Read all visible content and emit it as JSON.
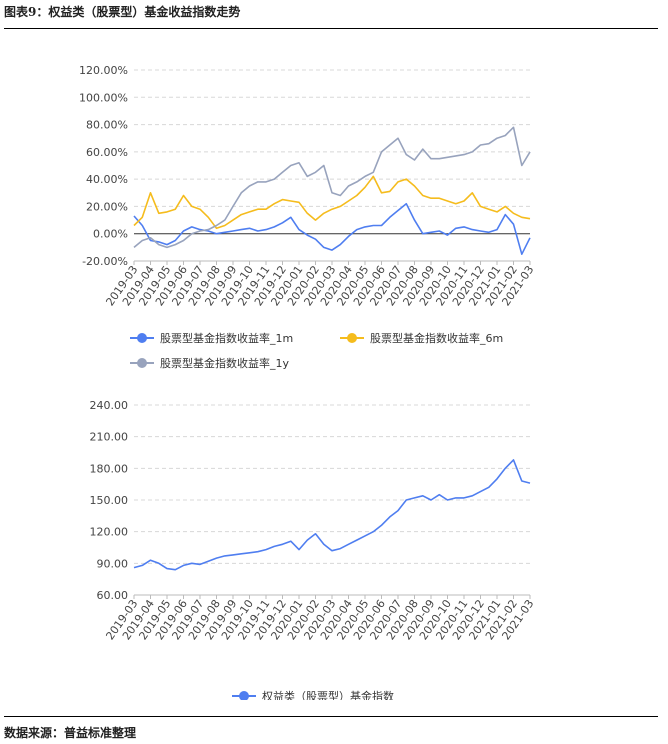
{
  "header": {
    "title": "图表9：权益类（股票型）基金收益指数走势"
  },
  "footer": {
    "source": "数据来源：普益标准整理"
  },
  "x_labels": [
    "2019-03",
    "2019-04",
    "2019-05",
    "2019-06",
    "2019-07",
    "2019-08",
    "2019-09",
    "2019-10",
    "2019-11",
    "2019-12",
    "2020-01",
    "2020-02",
    "2020-03",
    "2020-04",
    "2020-05",
    "2020-06",
    "2020-07",
    "2020-08",
    "2020-09",
    "2020-10",
    "2020-11",
    "2020-12",
    "2021-01",
    "2021-02",
    "2021-03"
  ],
  "chart_data": [
    {
      "type": "line",
      "y_unit": "%",
      "ylim": [
        -20,
        120
      ],
      "yticks": [
        -20,
        0,
        20,
        40,
        60,
        80,
        100,
        120
      ],
      "ytick_labels": [
        "-20.00%",
        "0.00%",
        "20.00%",
        "40.00%",
        "60.00%",
        "80.00%",
        "100.00%",
        "120.00%"
      ],
      "grid": true,
      "legend": "bottom",
      "x": [
        0,
        0.5,
        1,
        1.5,
        2,
        2.5,
        3,
        3.5,
        4,
        4.5,
        5,
        5.5,
        6,
        6.5,
        7,
        7.5,
        8,
        8.5,
        9,
        9.5,
        10,
        10.5,
        11,
        11.5,
        12,
        12.5,
        13,
        13.5,
        14,
        14.5,
        15,
        15.5,
        16,
        16.5,
        17,
        17.5,
        18,
        18.5,
        19,
        19.5,
        20,
        20.5,
        21,
        21.5,
        22,
        22.5,
        23,
        23.5,
        24
      ],
      "series": [
        {
          "name": "股票型基金指数收益率_1m",
          "color": "#4f7ef0",
          "values": [
            13,
            6,
            -5,
            -6,
            -8,
            -5,
            2,
            5,
            3,
            2,
            0,
            1,
            2,
            3,
            4,
            2,
            3,
            5,
            8,
            12,
            3,
            -1,
            -4,
            -10,
            -12,
            -8,
            -2,
            3,
            5,
            6,
            6,
            12,
            17,
            22,
            10,
            0,
            1,
            2,
            -1,
            4,
            5,
            3,
            2,
            1,
            3,
            14,
            7,
            -15,
            -3
          ]
        },
        {
          "name": "股票型基金指数收益率_6m",
          "color": "#f5bc1d",
          "values": [
            6,
            12,
            30,
            15,
            16,
            18,
            28,
            20,
            18,
            12,
            4,
            6,
            10,
            14,
            16,
            18,
            18,
            22,
            25,
            24,
            23,
            15,
            10,
            15,
            18,
            20,
            24,
            28,
            34,
            42,
            30,
            31,
            38,
            40,
            35,
            28,
            26,
            26,
            24,
            22,
            24,
            30,
            20,
            18,
            16,
            20,
            15,
            12,
            11
          ]
        },
        {
          "name": "股票型基金指数收益率_1y",
          "color": "#98a3bd",
          "values": [
            -10,
            -5,
            -3,
            -8,
            -10,
            -8,
            -5,
            0,
            2,
            3,
            6,
            10,
            20,
            30,
            35,
            38,
            38,
            40,
            45,
            50,
            52,
            42,
            45,
            50,
            30,
            28,
            35,
            38,
            42,
            45,
            60,
            65,
            70,
            58,
            54,
            62,
            55,
            55,
            56,
            57,
            58,
            60,
            65,
            66,
            70,
            72,
            78,
            50,
            60
          ]
        }
      ]
    },
    {
      "type": "line",
      "ylim": [
        60,
        240
      ],
      "yticks": [
        60,
        90,
        120,
        150,
        180,
        210,
        240
      ],
      "ytick_labels": [
        "60.00",
        "90.00",
        "120.00",
        "150.00",
        "180.00",
        "210.00",
        "240.00"
      ],
      "grid": true,
      "legend": "bottom",
      "x": [
        0,
        0.5,
        1,
        1.5,
        2,
        2.5,
        3,
        3.5,
        4,
        4.5,
        5,
        5.5,
        6,
        6.5,
        7,
        7.5,
        8,
        8.5,
        9,
        9.5,
        10,
        10.5,
        11,
        11.5,
        12,
        12.5,
        13,
        13.5,
        14,
        14.5,
        15,
        15.5,
        16,
        16.5,
        17,
        17.5,
        18,
        18.5,
        19,
        19.5,
        20,
        20.5,
        21,
        21.5,
        22,
        22.5,
        23,
        23.5,
        24
      ],
      "series": [
        {
          "name": "权益类（股票型）基金指数",
          "color": "#4f7ef0",
          "values": [
            86,
            88,
            93,
            90,
            85,
            84,
            88,
            90,
            89,
            92,
            95,
            97,
            98,
            99,
            100,
            101,
            103,
            106,
            108,
            111,
            103,
            112,
            118,
            108,
            102,
            104,
            108,
            112,
            116,
            120,
            126,
            134,
            140,
            150,
            152,
            154,
            150,
            155,
            150,
            152,
            152,
            154,
            158,
            162,
            170,
            180,
            188,
            168,
            166
          ]
        }
      ]
    }
  ]
}
